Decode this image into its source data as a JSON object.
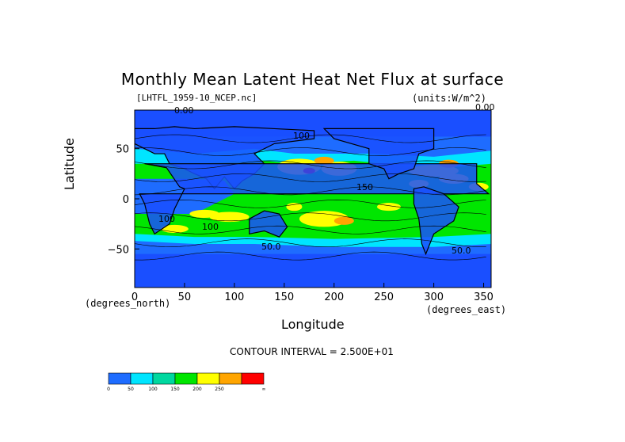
{
  "chart_data": {
    "type": "heatmap",
    "title": "Monthly Mean Latent Heat Net Flux at surface",
    "file_label": "[LHTFL_1959-10_NCEP.nc]",
    "units_label": "(units:W/m^2)",
    "xlabel": "Longitude",
    "ylabel": "Latitude",
    "x_unit_left": "(degrees_north)",
    "x_unit_right": "(degrees_east)",
    "xlim": [
      0,
      357.5
    ],
    "ylim": [
      -88.5,
      88.5
    ],
    "x_ticks": [
      "0",
      "50",
      "100",
      "150",
      "200",
      "250",
      "300",
      "350"
    ],
    "y_ticks": [
      "50",
      "0",
      "−50"
    ],
    "contour_interval": "CONTOUR INTERVAL = 2.500E+01",
    "contour_labels": [
      "0.00",
      "0.00",
      "50.0",
      "100",
      "150",
      "50.0",
      "100",
      "100"
    ],
    "colorbar": {
      "colors": [
        "#1e6cff",
        "#00e5ff",
        "#00d8a0",
        "#00e600",
        "#ffff00",
        "#ffa500",
        "#ff0000"
      ],
      "labels": [
        "0",
        "50",
        "100",
        "150",
        "200",
        "250",
        "∞"
      ]
    },
    "colors": {
      "low": "#1e6cff",
      "ocean_deep": "#1a4fff",
      "mid": "#00e5ff",
      "green": "#00e600",
      "high": "#ffff00",
      "higher": "#ffa500",
      "max": "#ff0000"
    }
  }
}
